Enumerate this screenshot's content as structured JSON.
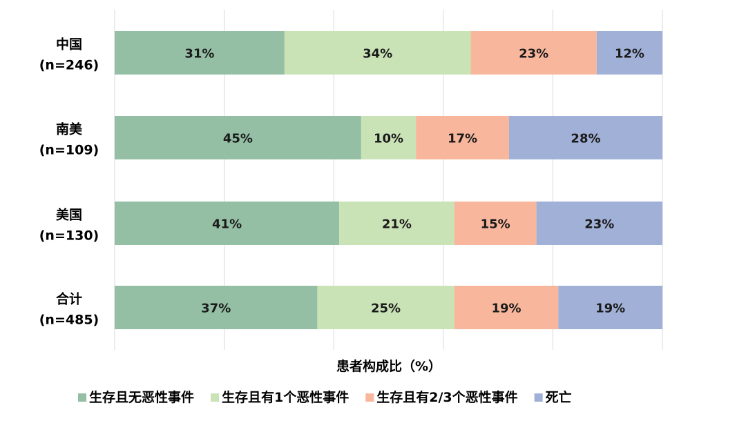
{
  "chart_data": {
    "type": "bar",
    "orientation": "horizontal",
    "stacked": true,
    "categories": [
      {
        "name": "中国",
        "n": "(n=246)"
      },
      {
        "name": "南美",
        "n": "(n=109)"
      },
      {
        "name": "美国",
        "n": "(n=130)"
      },
      {
        "name": "合计",
        "n": "(n=485)"
      }
    ],
    "series": [
      {
        "name": "生存且无恶性事件",
        "color": "#94bfa5",
        "values": [
          31,
          45,
          41,
          37
        ]
      },
      {
        "name": "生存且有1个恶性事件",
        "color": "#c9e2b6",
        "values": [
          34,
          10,
          21,
          25
        ]
      },
      {
        "name": "生存且有2/3个恶性事件",
        "color": "#f8b79d",
        "values": [
          23,
          17,
          15,
          19
        ]
      },
      {
        "name": "死亡",
        "color": "#a0b0d6",
        "values": [
          12,
          28,
          23,
          19
        ]
      }
    ],
    "value_suffix": "%",
    "xlabel": "患者构成比（%）",
    "ylabel": "",
    "xlim": [
      0,
      100
    ],
    "grid": true,
    "legend_position": "bottom"
  }
}
